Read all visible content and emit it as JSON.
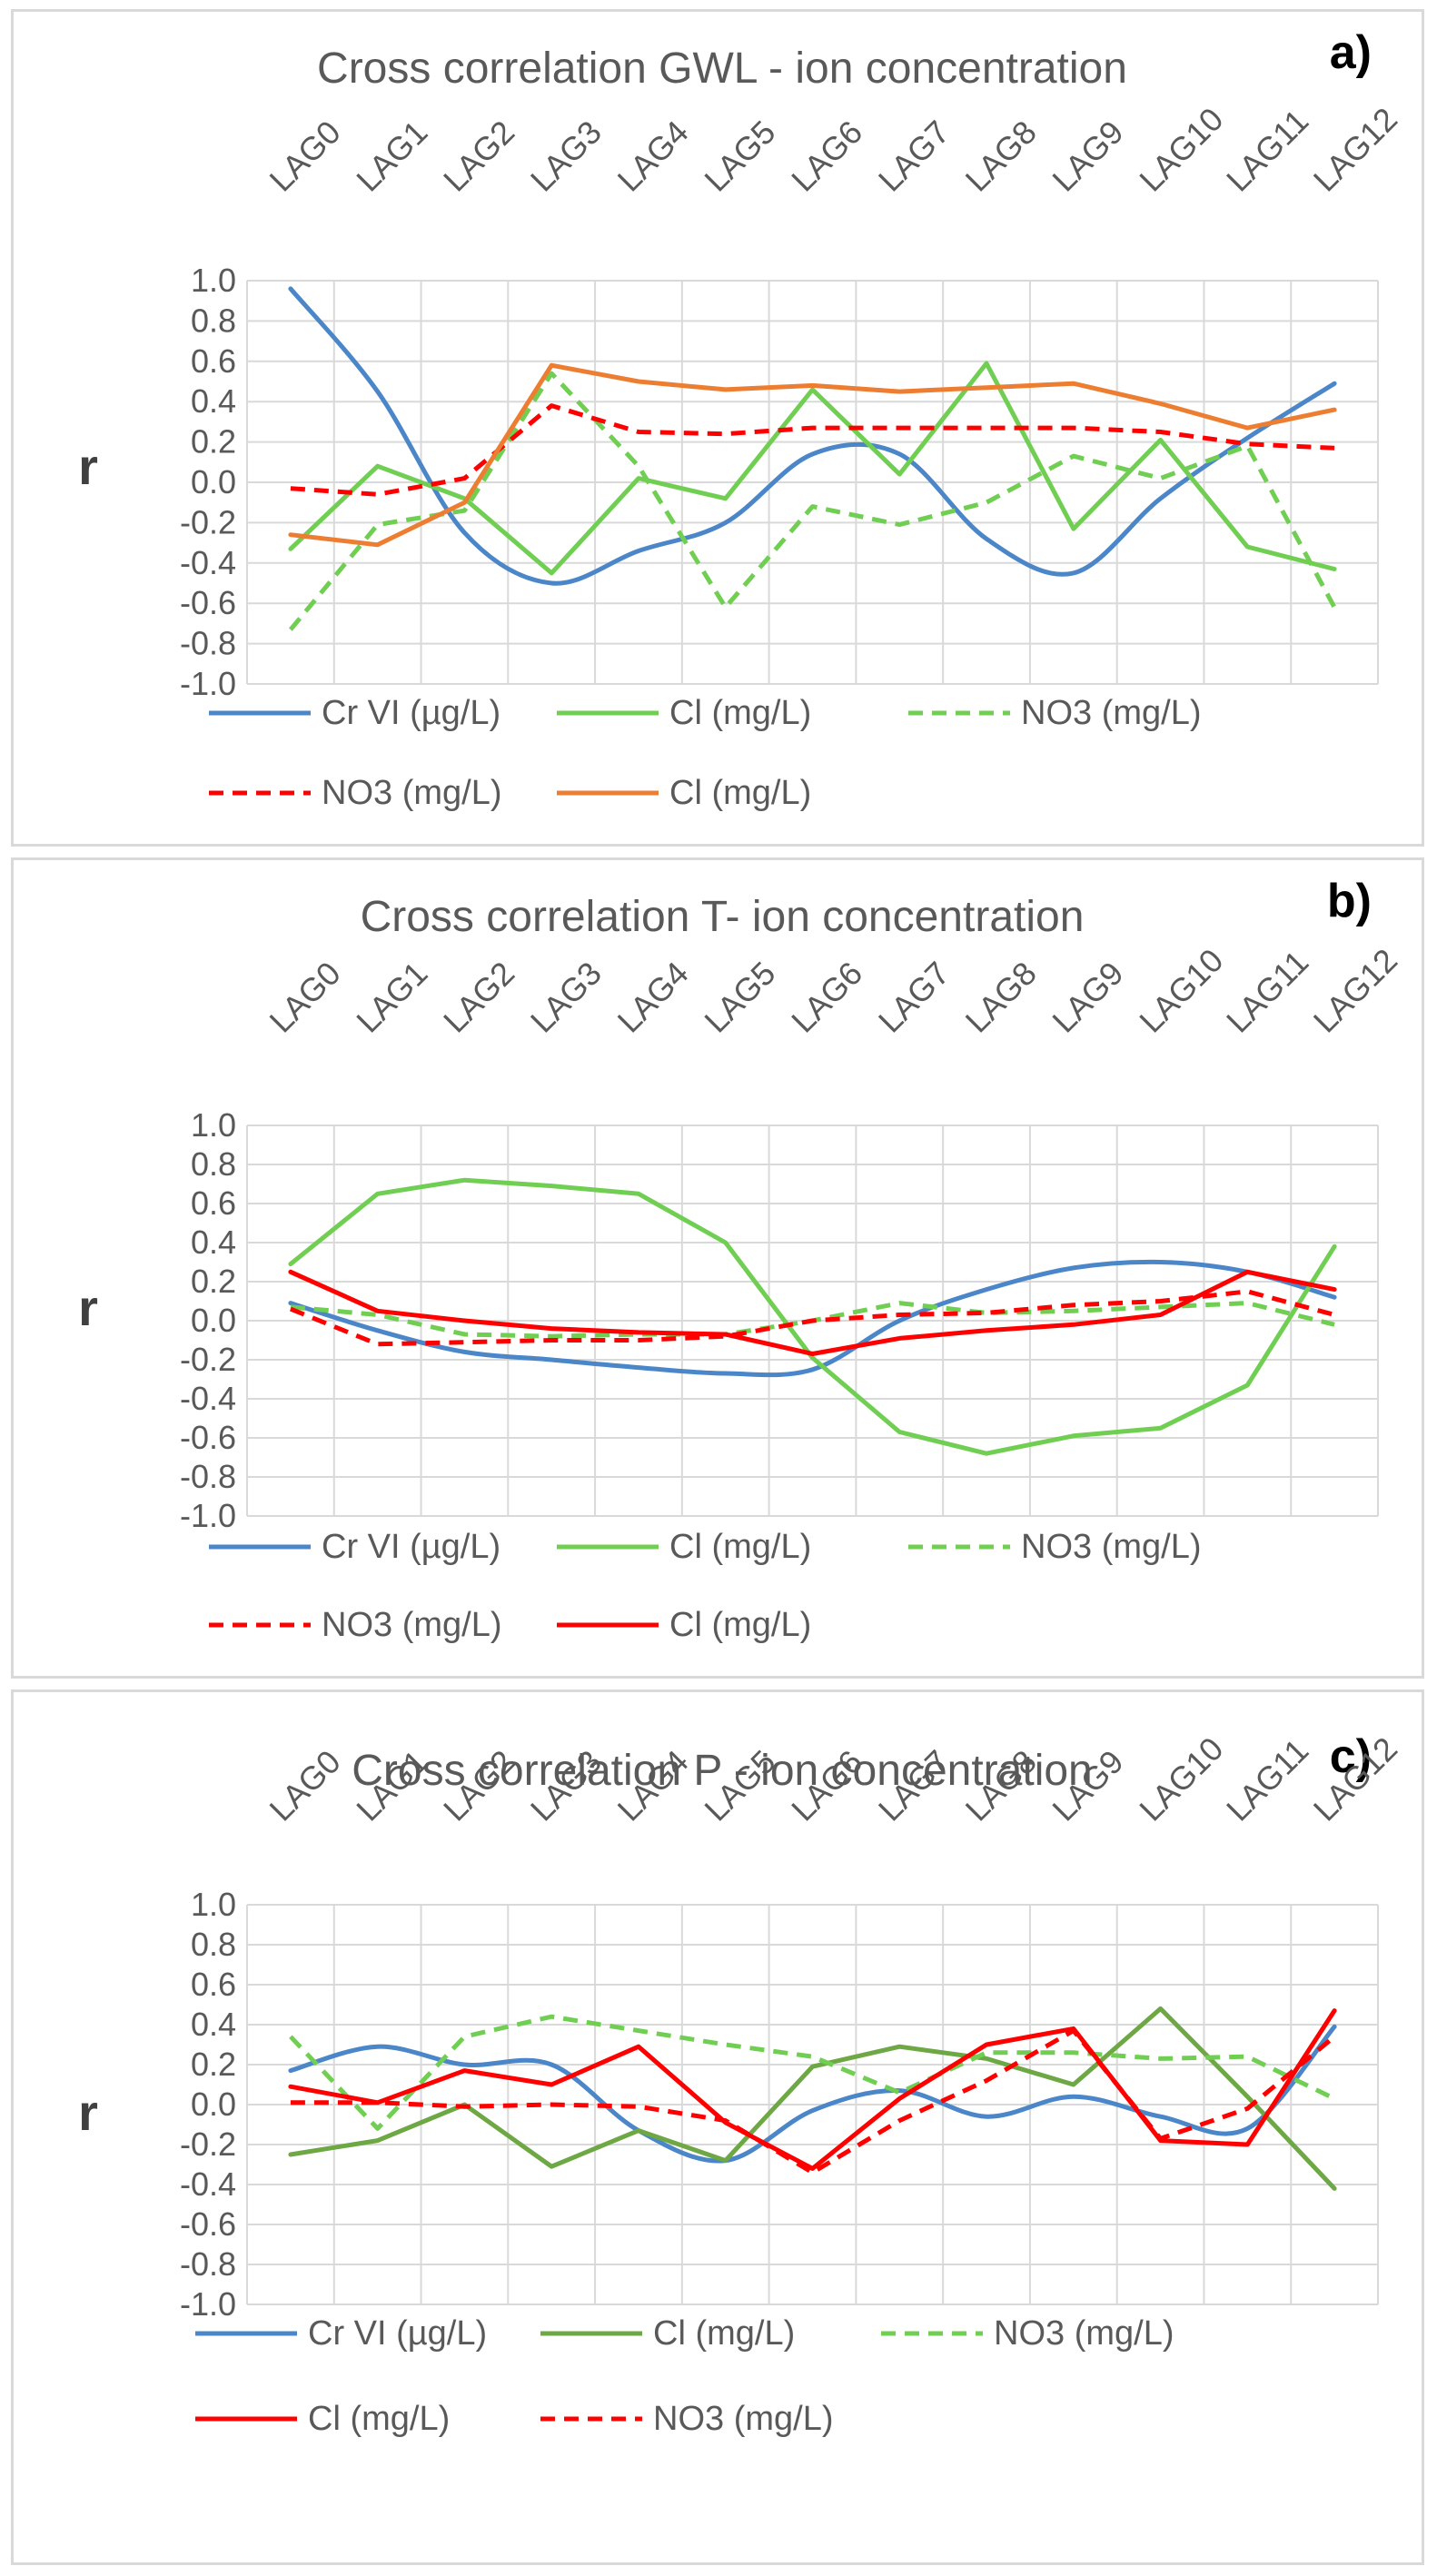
{
  "chart_data": [
    {
      "type": "line",
      "panel": "a)",
      "title": "Cross correlation GWL - ion concentration",
      "ylabel": "r",
      "ylim": [
        -1.0,
        1.0
      ],
      "yticks": [
        "1.0",
        "0.8",
        "0.6",
        "0.4",
        "0.2",
        "0.0",
        "-0.2",
        "-0.4",
        "-0.6",
        "-0.8",
        "-1.0"
      ],
      "categories": [
        "LAG0",
        "LAG1",
        "LAG2",
        "LAG3",
        "LAG4",
        "LAG5",
        "LAG6",
        "LAG7",
        "LAG8",
        "LAG9",
        "LAG10",
        "LAG11",
        "LAG12"
      ],
      "legend": [
        [
          "0",
          "1",
          "2"
        ],
        [
          "3",
          "4"
        ]
      ],
      "series": [
        {
          "name": "Cr VI (µg/L)",
          "color": "#4a86c8",
          "dash": false,
          "smooth": true,
          "values": [
            0.96,
            0.45,
            -0.25,
            -0.5,
            -0.34,
            -0.2,
            0.14,
            0.14,
            -0.28,
            -0.45,
            -0.08,
            0.22,
            0.49
          ]
        },
        {
          "name": "Cl (mg/L)",
          "color": "#70cf52",
          "dash": false,
          "smooth": false,
          "values": [
            -0.33,
            0.08,
            -0.08,
            -0.45,
            0.02,
            -0.08,
            0.46,
            0.04,
            0.59,
            -0.23,
            0.21,
            -0.32,
            -0.43
          ]
        },
        {
          "name": "NO3 (mg/L)",
          "color": "#70cf52",
          "dash": true,
          "smooth": false,
          "values": [
            -0.73,
            -0.21,
            -0.14,
            0.54,
            0.08,
            -0.62,
            -0.12,
            -0.21,
            -0.1,
            0.13,
            0.02,
            0.18,
            -0.62
          ]
        },
        {
          "name": "NO3 (mg/L)",
          "color": "#ff0000",
          "dash": true,
          "smooth": false,
          "values": [
            -0.03,
            -0.06,
            0.02,
            0.38,
            0.25,
            0.24,
            0.27,
            0.27,
            0.27,
            0.27,
            0.25,
            0.19,
            0.17
          ]
        },
        {
          "name": "Cl (mg/L)",
          "color": "#ed7d31",
          "dash": false,
          "smooth": false,
          "values": [
            -0.26,
            -0.31,
            -0.1,
            0.58,
            0.5,
            0.46,
            0.48,
            0.45,
            0.47,
            0.49,
            0.39,
            0.27,
            0.36
          ]
        }
      ]
    },
    {
      "type": "line",
      "panel": "b)",
      "title": "Cross correlation T- ion concentration",
      "ylabel": "r",
      "ylim": [
        -1.0,
        1.0
      ],
      "yticks": [
        "1.0",
        "0.8",
        "0.6",
        "0.4",
        "0.2",
        "0.0",
        "-0.2",
        "-0.4",
        "-0.6",
        "-0.8",
        "-1.0"
      ],
      "categories": [
        "LAG0",
        "LAG1",
        "LAG2",
        "LAG3",
        "LAG4",
        "LAG5",
        "LAG6",
        "LAG7",
        "LAG8",
        "LAG9",
        "LAG10",
        "LAG11",
        "LAG12"
      ],
      "legend": [
        [
          "0",
          "1",
          "2"
        ],
        [
          "3",
          "4"
        ]
      ],
      "series": [
        {
          "name": "Cr VI (µg/L)",
          "color": "#4a86c8",
          "dash": false,
          "smooth": true,
          "values": [
            0.09,
            -0.05,
            -0.16,
            -0.2,
            -0.24,
            -0.27,
            -0.25,
            0.0,
            0.16,
            0.27,
            0.3,
            0.25,
            0.12
          ]
        },
        {
          "name": "Cl (mg/L)",
          "color": "#70cf52",
          "dash": false,
          "smooth": false,
          "values": [
            0.29,
            0.65,
            0.72,
            0.69,
            0.65,
            0.4,
            -0.19,
            -0.57,
            -0.68,
            -0.59,
            -0.55,
            -0.33,
            0.38
          ]
        },
        {
          "name": "NO3 (mg/L)",
          "color": "#70cf52",
          "dash": true,
          "smooth": false,
          "values": [
            0.07,
            0.03,
            -0.07,
            -0.08,
            -0.07,
            -0.07,
            0.0,
            0.09,
            0.04,
            0.05,
            0.07,
            0.09,
            -0.02
          ]
        },
        {
          "name": "NO3 (mg/L)",
          "color": "#ff0000",
          "dash": true,
          "smooth": false,
          "values": [
            0.06,
            -0.12,
            -0.11,
            -0.1,
            -0.1,
            -0.08,
            0.0,
            0.03,
            0.04,
            0.08,
            0.1,
            0.15,
            0.03
          ]
        },
        {
          "name": "Cl (mg/L)",
          "color": "#ff0000",
          "dash": false,
          "smooth": false,
          "values": [
            0.25,
            0.05,
            0.0,
            -0.04,
            -0.06,
            -0.07,
            -0.17,
            -0.09,
            -0.05,
            -0.02,
            0.03,
            0.25,
            0.16
          ]
        }
      ]
    },
    {
      "type": "line",
      "panel": "c)",
      "title": "Cross correlation P - ion concentration",
      "ylabel": "r",
      "ylim": [
        -1.0,
        1.0
      ],
      "yticks": [
        "1.0",
        "0.8",
        "0.6",
        "0.4",
        "0.2",
        "0.0",
        "-0.2",
        "-0.4",
        "-0.6",
        "-0.8",
        "-1.0"
      ],
      "categories": [
        "LAG0",
        "LAG1",
        "LAG2",
        "LAG3",
        "LAG4",
        "LAG5",
        "LAG6",
        "LAG7",
        "LAG8",
        "LAG9",
        "LAG10",
        "LAG11",
        "LAG12"
      ],
      "legend": [
        [
          "0",
          "1",
          "2"
        ],
        [
          "3",
          "4"
        ]
      ],
      "series": [
        {
          "name": "Cr VI (µg/L)",
          "color": "#4a86c8",
          "dash": false,
          "smooth": true,
          "values": [
            0.17,
            0.29,
            0.2,
            0.2,
            -0.13,
            -0.28,
            -0.03,
            0.07,
            -0.06,
            0.04,
            -0.06,
            -0.12,
            0.39
          ]
        },
        {
          "name": "Cl (mg/L)",
          "color": "#6ea845",
          "dash": false,
          "smooth": false,
          "values": [
            -0.25,
            -0.18,
            0.0,
            -0.31,
            -0.13,
            -0.28,
            0.19,
            0.29,
            0.23,
            0.1,
            0.48,
            0.04,
            -0.42
          ]
        },
        {
          "name": "NO3 (mg/L)",
          "color": "#70cf52",
          "dash": true,
          "smooth": false,
          "values": [
            0.34,
            -0.12,
            0.34,
            0.44,
            0.37,
            0.3,
            0.24,
            0.06,
            0.26,
            0.26,
            0.23,
            0.24,
            0.03
          ]
        },
        {
          "name": "Cl (mg/L)",
          "color": "#ff0000",
          "dash": false,
          "smooth": false,
          "values": [
            0.09,
            0.01,
            0.17,
            0.1,
            0.29,
            -0.09,
            -0.32,
            0.03,
            0.3,
            0.38,
            -0.18,
            -0.2,
            0.47
          ]
        },
        {
          "name": "NO3 (mg/L)",
          "color": "#ff0000",
          "dash": true,
          "smooth": false,
          "values": [
            0.01,
            0.01,
            -0.01,
            0.0,
            -0.01,
            -0.08,
            -0.34,
            -0.08,
            0.12,
            0.37,
            -0.17,
            -0.02,
            0.34
          ]
        }
      ]
    }
  ]
}
